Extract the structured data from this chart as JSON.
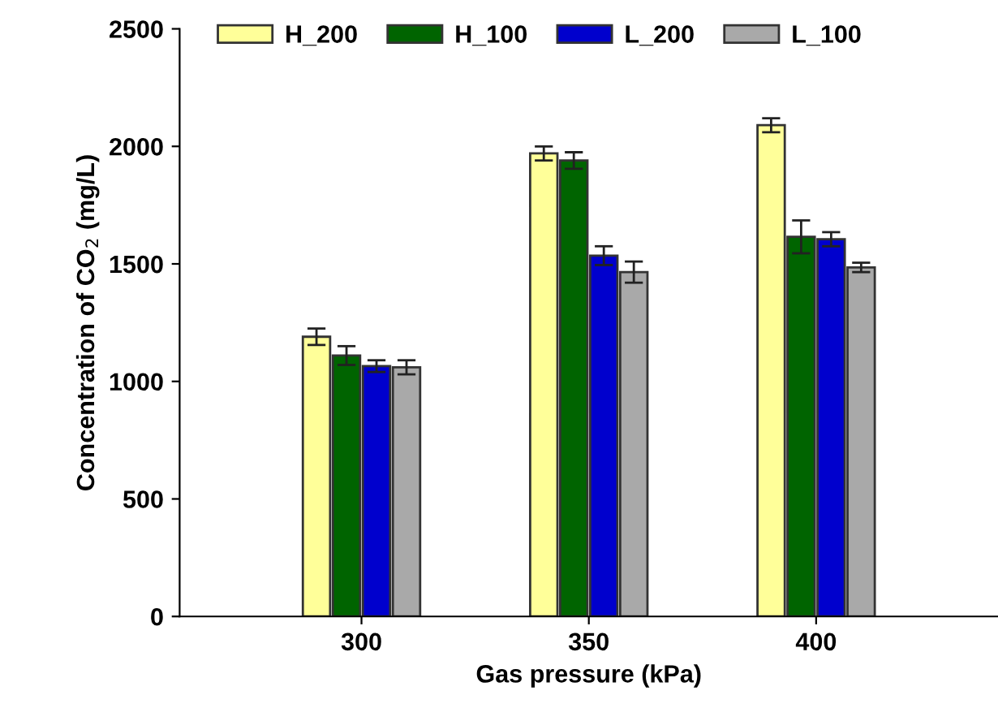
{
  "chart_data": {
    "type": "bar",
    "xlabel": "Gas pressure (kPa)",
    "ylabel": "Concentration of CO$_{2}$ (mg/L)",
    "categories": [
      "300",
      "350",
      "400"
    ],
    "series": [
      {
        "name": "H_200",
        "color": "#ffff99",
        "values": [
          1190,
          1970,
          2090
        ],
        "errors": [
          35,
          30,
          30
        ]
      },
      {
        "name": "H_100",
        "color": "#006400",
        "values": [
          1110,
          1940,
          1615
        ],
        "errors": [
          40,
          35,
          70
        ]
      },
      {
        "name": "L_200",
        "color": "#0000cd",
        "values": [
          1065,
          1535,
          1605
        ],
        "errors": [
          25,
          40,
          30
        ]
      },
      {
        "name": "L_100",
        "color": "#a9a9a9",
        "values": [
          1060,
          1465,
          1485
        ],
        "errors": [
          30,
          45,
          20
        ]
      }
    ],
    "ylim": [
      0,
      2500
    ],
    "yticks": [
      0,
      500,
      1000,
      1500,
      2000,
      2500
    ],
    "grid": false,
    "legend": "top"
  }
}
